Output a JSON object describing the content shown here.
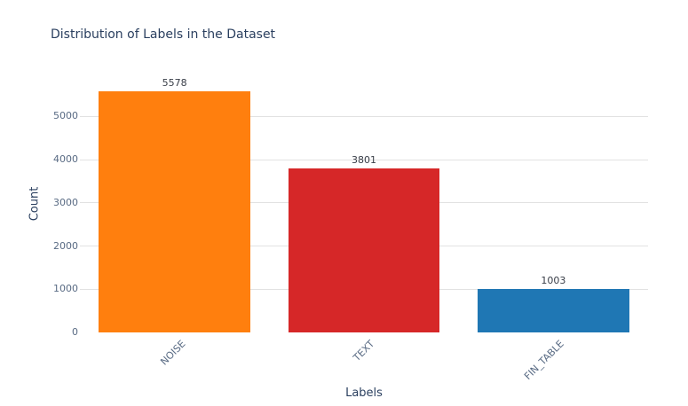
{
  "chart_data": {
    "type": "bar",
    "title": "Distribution of Labels in the Dataset",
    "categories": [
      "NOISE",
      "TEXT",
      "FIN_TABLE"
    ],
    "values": [
      5578,
      3801,
      1003
    ],
    "bar_labels": [
      "5578",
      "3801",
      "1003"
    ],
    "xlabel": "Labels",
    "ylabel": "Count",
    "ylim": [
      0,
      5950
    ],
    "yticks": [
      0,
      1000,
      2000,
      3000,
      4000,
      5000
    ],
    "bar_colors": [
      "#ff7f0e",
      "#d62728",
      "#1f77b4"
    ],
    "grid": true,
    "legend_position": "none",
    "tick_angle_deg": -45,
    "bar_rel_width": 0.8
  },
  "style": {
    "background": "#ffffff",
    "title_color": "#2a3f5f",
    "axis_title_color": "#2a3f5f",
    "tick_label_color": "#596b84",
    "value_label_color": "#383d47",
    "grid_color": "#e2e2e2"
  }
}
